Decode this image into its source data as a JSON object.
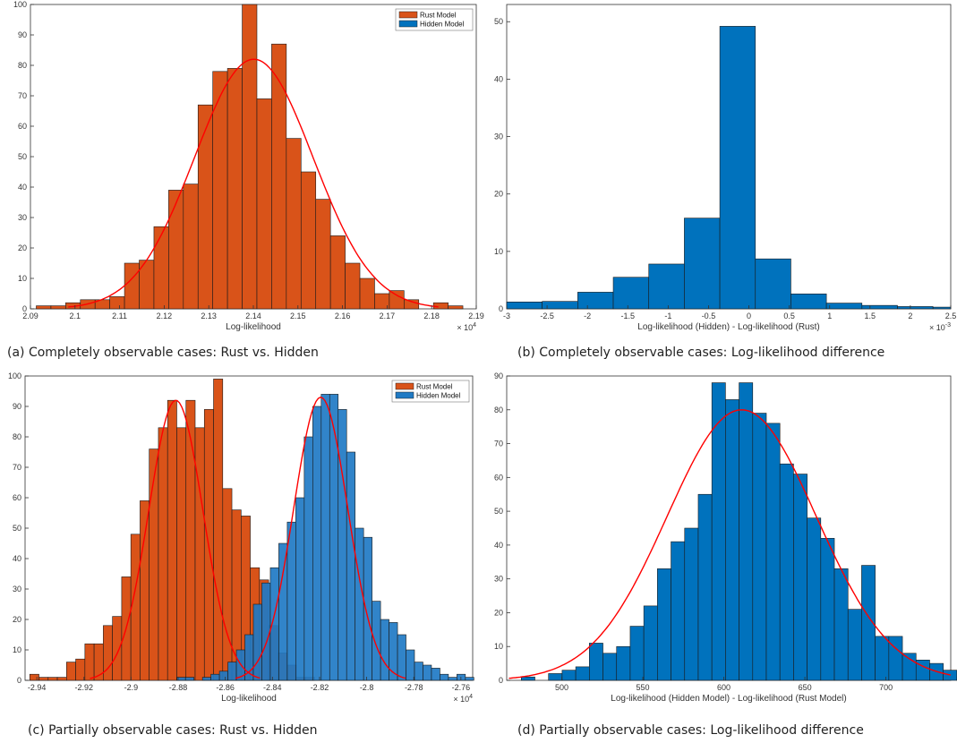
{
  "colors": {
    "rust": "#D95319",
    "hidden": "#0072BD",
    "hidden_overlay": "#1F7AC4",
    "fit": "#FF0000",
    "axis": "#333333",
    "grid_bg": "#ffffff"
  },
  "captions": {
    "a": "(a) Completely observable cases: Rust vs. Hidden",
    "b": "(b) Completely observable cases: Log-likelihood difference",
    "c": "(c) Partially observable cases: Rust vs. Hidden",
    "d": "(d) Partially observable cases: Log-likelihood difference"
  },
  "chart_data": [
    {
      "id": "a",
      "type": "bar",
      "xlabel": "Log-likelihood",
      "ylabel": "",
      "x_exponent": "× 10^4",
      "xlim": [
        2.09,
        2.19
      ],
      "ylim": [
        0,
        100
      ],
      "xticks": [
        2.09,
        2.1,
        2.11,
        2.12,
        2.13,
        2.14,
        2.15,
        2.16,
        2.17,
        2.18,
        2.19
      ],
      "xtick_labels": [
        "2.09",
        "2.1",
        "2.11",
        "2.12",
        "2.13",
        "2.14",
        "2.15",
        "2.16",
        "2.17",
        "2.18",
        "2.19"
      ],
      "yticks": [
        0,
        10,
        20,
        30,
        40,
        50,
        60,
        70,
        80,
        90,
        100
      ],
      "ytick_labels": [
        "0",
        "10",
        "20",
        "30",
        "40",
        "50",
        "60",
        "70",
        "80",
        "90",
        "100"
      ],
      "legend": {
        "position": "top-right",
        "entries": [
          "Rust Model",
          "Hidden Model"
        ]
      },
      "series": [
        {
          "name": "Rust Model",
          "color_key": "rust",
          "bin_edges": [
            2.0913,
            2.0946,
            2.0979,
            2.1012,
            2.1045,
            2.1078,
            2.1111,
            2.1144,
            2.1177,
            2.121,
            2.1243,
            2.1276,
            2.1309,
            2.1342,
            2.1375,
            2.1408,
            2.1441,
            2.1474,
            2.1507,
            2.154,
            2.1573,
            2.1606,
            2.1639,
            2.1672,
            2.1705,
            2.1738,
            2.1771,
            2.1804,
            2.1837,
            2.187
          ],
          "values": [
            1,
            1,
            2,
            3,
            3,
            4,
            15,
            16,
            27,
            39,
            41,
            67,
            78,
            79,
            100,
            69,
            87,
            56,
            45,
            36,
            24,
            15,
            10,
            5,
            6,
            3,
            0,
            2,
            1
          ],
          "fit": {
            "mean": 2.1401,
            "sd": 0.0133,
            "peak": 82
          }
        }
      ]
    },
    {
      "id": "b",
      "type": "bar",
      "xlabel": "Log-likelihood (Hidden) - Log-likelihood (Rust)",
      "ylabel": "",
      "x_exponent": "× 10^-3",
      "xlim": [
        -3,
        2.5
      ],
      "ylim": [
        0,
        53
      ],
      "xticks": [
        -3,
        -2.5,
        -2,
        -1.5,
        -1,
        -0.5,
        0,
        0.5,
        1,
        1.5,
        2,
        2.5
      ],
      "xtick_labels": [
        "-3",
        "-2.5",
        "-2",
        "-1.5",
        "-1",
        "-0.5",
        "0",
        "0.5",
        "1",
        "1.5",
        "2",
        "2.5"
      ],
      "yticks": [
        0,
        10,
        20,
        30,
        40,
        50
      ],
      "ytick_labels": [
        "0",
        "10",
        "20",
        "30",
        "40",
        "50"
      ],
      "series": [
        {
          "name": "",
          "color_key": "hidden",
          "bin_edges": [
            -3,
            -2.56,
            -2.12,
            -1.68,
            -1.24,
            -0.8,
            -0.36,
            0.08,
            0.52,
            0.96,
            1.4,
            1.84,
            2.28,
            2.5
          ],
          "values": [
            1.2,
            1.3,
            2.9,
            5.5,
            7.8,
            15.8,
            49.2,
            8.7,
            2.6,
            1.0,
            0.6,
            0.4,
            0.3
          ]
        }
      ]
    },
    {
      "id": "c",
      "type": "bar",
      "xlabel": "Log-likelihood",
      "ylabel": "",
      "x_exponent": "× 10^4",
      "xlim": [
        -2.945,
        -2.755
      ],
      "ylim": [
        0,
        100
      ],
      "xticks": [
        -2.94,
        -2.92,
        -2.9,
        -2.88,
        -2.86,
        -2.84,
        -2.82,
        -2.8,
        -2.78,
        -2.76
      ],
      "xtick_labels": [
        "-2.94",
        "-2.92",
        "-2.9",
        "-2.88",
        "-2.86",
        "-2.84",
        "-2.82",
        "-2.8",
        "-2.78",
        "-2.76"
      ],
      "yticks": [
        0,
        10,
        20,
        30,
        40,
        50,
        60,
        70,
        80,
        90,
        100
      ],
      "ytick_labels": [
        "0",
        "10",
        "20",
        "30",
        "40",
        "50",
        "60",
        "70",
        "80",
        "90",
        "100"
      ],
      "legend": {
        "position": "top-right",
        "entries": [
          "Rust Model",
          "Hidden Model"
        ]
      },
      "series": [
        {
          "name": "Rust Model",
          "color_key": "rust",
          "bin_start": -2.943,
          "bin_width": 0.0039,
          "values": [
            2,
            1,
            1,
            1,
            6,
            7,
            12,
            12,
            18,
            21,
            34,
            48,
            59,
            76,
            83,
            92,
            83,
            92,
            83,
            89,
            99,
            63,
            56,
            54,
            37,
            33,
            18,
            9,
            5,
            1,
            1
          ],
          "fit": {
            "mean": -2.881,
            "sd": 0.0115,
            "peak": 92
          }
        },
        {
          "name": "Hidden Model",
          "color_key": "hidden_overlay",
          "bin_start": -2.8805,
          "bin_width": 0.0036,
          "values": [
            1,
            1,
            0,
            1,
            2,
            3,
            6,
            10,
            15,
            25,
            32,
            37,
            45,
            52,
            60,
            80,
            90,
            94,
            94,
            89,
            75,
            50,
            47,
            26,
            20,
            19,
            15,
            10,
            6,
            5,
            4,
            2,
            1,
            2,
            1
          ],
          "fit": {
            "mean": -2.8195,
            "sd": 0.0115,
            "peak": 93
          }
        }
      ]
    },
    {
      "id": "d",
      "type": "bar",
      "xlabel": "Log-likelihood (Hidden Model) - Log-likelihood (Rust Model)",
      "ylabel": "",
      "xlim": [
        466,
        740
      ],
      "ylim": [
        0,
        90
      ],
      "xticks": [
        500,
        550,
        600,
        650,
        700
      ],
      "xtick_labels": [
        "500",
        "550",
        "600",
        "650",
        "700"
      ],
      "yticks": [
        0,
        10,
        20,
        30,
        40,
        50,
        60,
        70,
        80,
        90
      ],
      "ytick_labels": [
        "0",
        "10",
        "20",
        "30",
        "40",
        "50",
        "60",
        "70",
        "80",
        "90"
      ],
      "series": [
        {
          "name": "",
          "color_key": "hidden",
          "bin_start": 475,
          "bin_width": 8.4,
          "values": [
            1,
            0,
            2,
            3,
            4,
            11,
            8,
            10,
            16,
            22,
            33,
            41,
            45,
            55,
            88,
            83,
            88,
            79,
            76,
            64,
            61,
            48,
            42,
            33,
            21,
            34,
            13,
            13,
            8,
            6,
            5,
            3,
            1
          ],
          "fit": {
            "mean": 611,
            "sd": 46,
            "peak": 80
          }
        }
      ]
    }
  ]
}
